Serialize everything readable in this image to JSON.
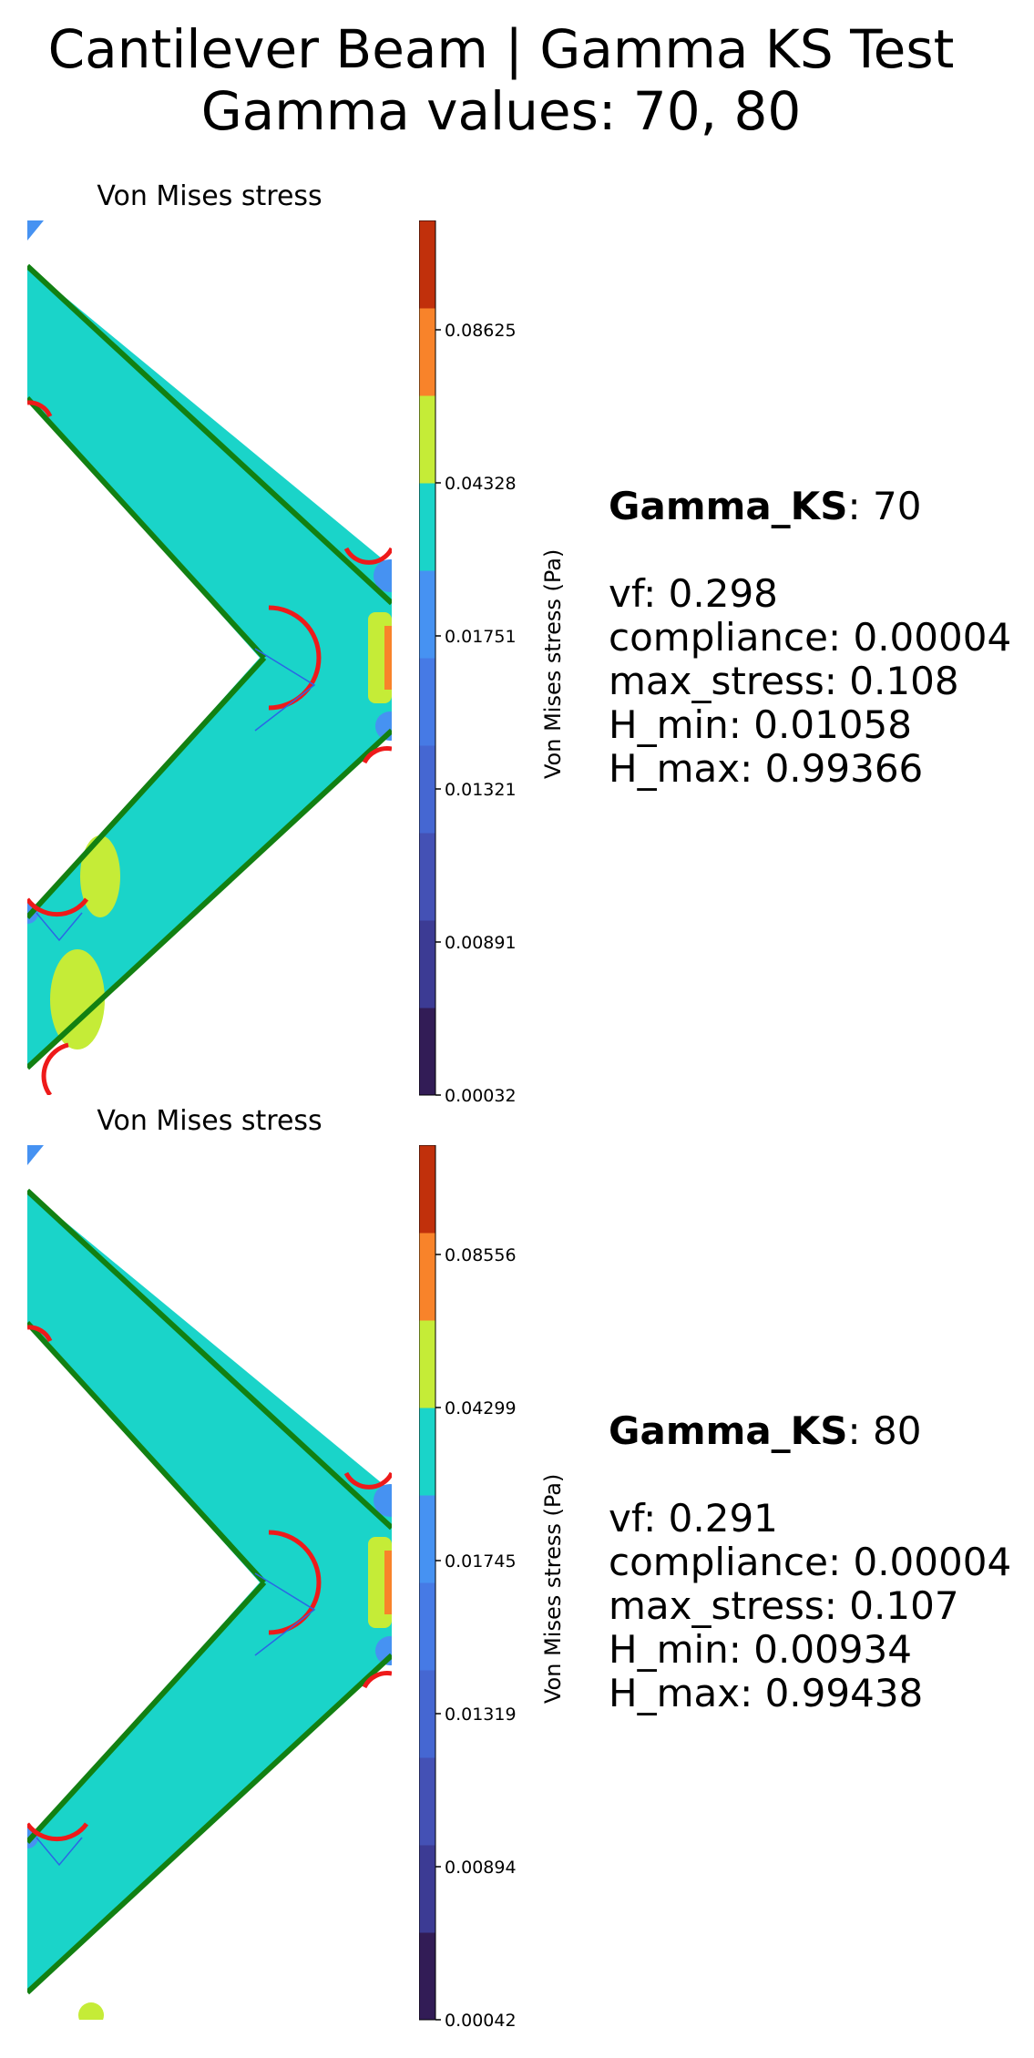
{
  "figure": {
    "title_line1": "Cantilever Beam | Gamma KS Test",
    "title_line2": "Gamma values: 70, 80"
  },
  "colors": {
    "teal": "#1ad4c9",
    "yellow_green": "#c5ec37",
    "orange": "#f8832a",
    "dark_red": "#c1300b",
    "mid_blue": "#4692f2",
    "boundary_red": "#ee1a1a",
    "boundary_green": "#128012",
    "outline_blue": "#2b66e6"
  },
  "colorbar_colors": [
    "#321c56",
    "#3c3b94",
    "#4451b5",
    "#4567d2",
    "#467ae5",
    "#4692f2",
    "#1ad4c9",
    "#c5ec37",
    "#f8832a",
    "#c1300b"
  ],
  "chart_data": [
    {
      "type": "heatmap",
      "title": "Von Mises stress",
      "colorbar": {
        "label": "Von Mises stress (Pa)",
        "ticks": [
          "0.00032",
          "0.00891",
          "0.01321",
          "0.01751",
          "0.04328",
          "0.08625"
        ],
        "tick_values": [
          0.00032,
          0.00891,
          0.01321,
          0.01751,
          0.04328,
          0.08625
        ]
      },
      "info": {
        "label": "Gamma_KS",
        "value": "70",
        "lines": [
          "vf: 0.298",
          "compliance: 0.00004",
          "max_stress: 0.108",
          "H_min: 0.01058",
          "H_max: 0.99366"
        ]
      }
    },
    {
      "type": "heatmap",
      "title": "Von Mises stress",
      "colorbar": {
        "label": "Von Mises stress (Pa)",
        "ticks": [
          "0.00042",
          "0.00894",
          "0.01319",
          "0.01745",
          "0.04299",
          "0.08556"
        ],
        "tick_values": [
          0.00042,
          0.00894,
          0.01319,
          0.01745,
          0.04299,
          0.08556
        ]
      },
      "info": {
        "label": "Gamma_KS",
        "value": "80",
        "lines": [
          "vf: 0.291",
          "compliance: 0.00004",
          "max_stress: 0.107",
          "H_min: 0.00934",
          "H_max: 0.99438"
        ]
      }
    }
  ]
}
